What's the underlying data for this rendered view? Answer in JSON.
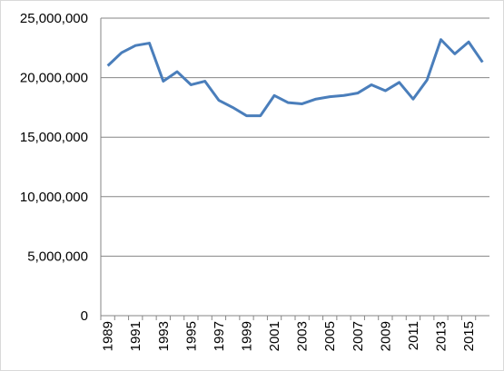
{
  "chart_data": {
    "type": "line",
    "categories": [
      "1989",
      null,
      "1991",
      null,
      "1993",
      null,
      "1995",
      null,
      "1997",
      null,
      "1999",
      null,
      "2001",
      null,
      "2003",
      null,
      "2005",
      null,
      "2007",
      null,
      "2009",
      null,
      "2011",
      null,
      "2013",
      null,
      "2015",
      null
    ],
    "values": [
      21000000,
      22100000,
      22700000,
      22900000,
      19700000,
      20500000,
      19400000,
      19700000,
      18100000,
      17500000,
      16800000,
      16800000,
      18500000,
      17900000,
      17800000,
      18200000,
      18400000,
      18500000,
      18700000,
      19400000,
      18900000,
      19600000,
      18200000,
      19800000,
      23200000,
      22000000,
      23000000,
      21300000
    ],
    "color": "#4a7ebb",
    "ylim": [
      0,
      25000000
    ],
    "yticks": [
      0,
      {
        "value": 5000000,
        "label": "5,000,000"
      },
      {
        "value": 10000000,
        "label": "10,000,000"
      },
      {
        "value": 15000000,
        "label": "15,000,000"
      },
      {
        "value": 20000000,
        "label": "20,000,000"
      },
      {
        "value": 25000000,
        "label": "25,000,000"
      }
    ],
    "grid": true
  }
}
